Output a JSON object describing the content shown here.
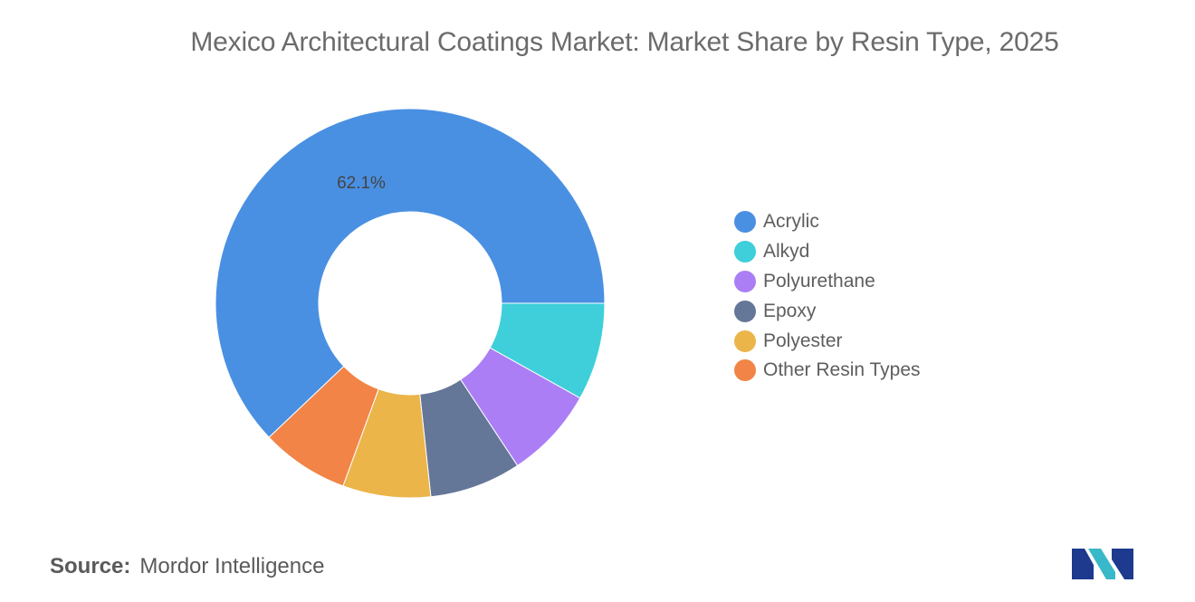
{
  "chart_data": {
    "type": "pie",
    "donut": true,
    "title": "Mexico Architectural Coatings Market: Market Share by Resin Type, 2025",
    "categories": [
      "Acrylic",
      "Alkyd",
      "Polyurethane",
      "Epoxy",
      "Polyester",
      "Other Resin Types"
    ],
    "values": [
      62.1,
      8.1,
      7.6,
      7.6,
      7.3,
      7.3
    ],
    "colors": [
      "#4a90e2",
      "#3ecfda",
      "#ab7ef6",
      "#657798",
      "#ebb54a",
      "#f18446"
    ],
    "data_labels": [
      "62.1%",
      "",
      "",
      "",
      "",
      ""
    ],
    "legend_position": "right"
  },
  "footer": {
    "source_label": "Source:",
    "source_value": "Mordor Intelligence"
  },
  "logo": {
    "icon": "mordor-intelligence-logo",
    "colors": [
      "#1d3a8f",
      "#38b8c8"
    ]
  }
}
